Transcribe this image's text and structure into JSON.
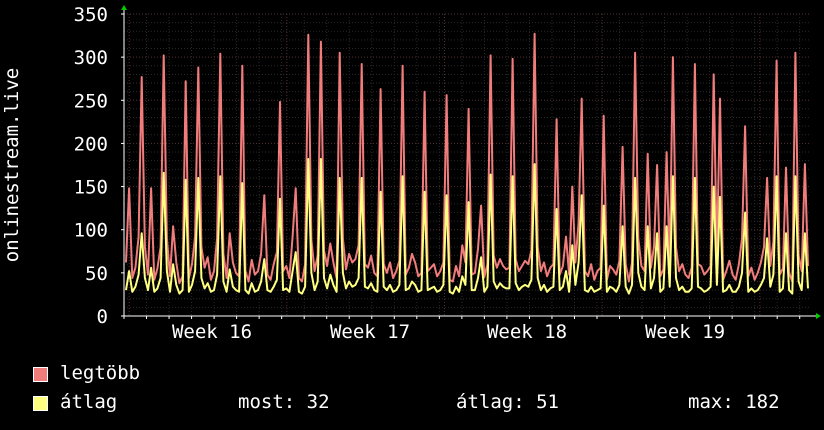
{
  "chart_data": {
    "type": "line",
    "ylabel": "onlinestream.live",
    "ylim": [
      0,
      350
    ],
    "yticks": [
      0,
      50,
      100,
      150,
      200,
      250,
      300,
      350
    ],
    "x_ticks": [
      "Week 16",
      "Week 17",
      "Week 18",
      "Week 19"
    ],
    "grid": true,
    "legend_placement": "bottom-left",
    "series": [
      {
        "name": "legtöbb",
        "color": "#f07c7c",
        "values": [
          62,
          148,
          44,
          56,
          92,
          277,
          80,
          48,
          148,
          42,
          55,
          80,
          302,
          90,
          46,
          104,
          62,
          38,
          46,
          272,
          44,
          60,
          92,
          288,
          80,
          56,
          68,
          42,
          52,
          90,
          304,
          72,
          44,
          96,
          62,
          50,
          46,
          290,
          52,
          40,
          65,
          48,
          52,
          72,
          140,
          48,
          42,
          60,
          74,
          248,
          52,
          58,
          44,
          92,
          148,
          44,
          40,
          60,
          326,
          88,
          52,
          70,
          318,
          76,
          58,
          84,
          62,
          44,
          305,
          90,
          54,
          72,
          62,
          66,
          82,
          292,
          60,
          56,
          70,
          50,
          46,
          263,
          60,
          50,
          62,
          44,
          52,
          64,
          290,
          48,
          56,
          72,
          62,
          46,
          50,
          260,
          52,
          56,
          60,
          46,
          52,
          62,
          256,
          42,
          40,
          58,
          46,
          82,
          62,
          240,
          48,
          50,
          78,
          128,
          45,
          60,
          302,
          70,
          56,
          66,
          58,
          54,
          56,
          298,
          66,
          52,
          58,
          64,
          60,
          76,
          327,
          80,
          52,
          62,
          46,
          56,
          60,
          228,
          48,
          58,
          92,
          48,
          150,
          62,
          108,
          252,
          52,
          46,
          60,
          42,
          52,
          56,
          232,
          42,
          58,
          54,
          48,
          64,
          196,
          60,
          40,
          62,
          305,
          90,
          58,
          52,
          188,
          56,
          80,
          175,
          46,
          54,
          190,
          58,
          300,
          80,
          52,
          60,
          48,
          44,
          56,
          292,
          60,
          58,
          48,
          52,
          58,
          280,
          64,
          252,
          42,
          52,
          64,
          48,
          42,
          60,
          90,
          220,
          46,
          56,
          42,
          50,
          62,
          80,
          160,
          58,
          86,
          296,
          48,
          55,
          172,
          50,
          40,
          305,
          70,
          52,
          176,
          58
        ]
      },
      {
        "name": "átlag",
        "color": "#ffff80",
        "values": [
          30,
          52,
          28,
          34,
          48,
          96,
          44,
          30,
          56,
          28,
          32,
          44,
          166,
          52,
          28,
          60,
          36,
          26,
          30,
          158,
          28,
          36,
          52,
          160,
          44,
          32,
          38,
          28,
          30,
          48,
          162,
          40,
          28,
          54,
          34,
          30,
          28,
          154,
          30,
          26,
          38,
          28,
          30,
          40,
          66,
          30,
          28,
          34,
          42,
          136,
          30,
          32,
          28,
          52,
          74,
          28,
          26,
          34,
          182,
          50,
          30,
          40,
          182,
          44,
          32,
          48,
          36,
          28,
          160,
          50,
          32,
          40,
          34,
          36,
          44,
          160,
          34,
          32,
          38,
          30,
          28,
          144,
          34,
          30,
          36,
          28,
          30,
          36,
          162,
          30,
          32,
          40,
          36,
          28,
          30,
          144,
          30,
          32,
          34,
          28,
          30,
          36,
          140,
          28,
          26,
          34,
          28,
          46,
          36,
          132,
          30,
          30,
          44,
          68,
          28,
          34,
          164,
          40,
          32,
          38,
          34,
          32,
          32,
          162,
          38,
          30,
          34,
          36,
          34,
          42,
          176,
          44,
          30,
          36,
          28,
          32,
          34,
          124,
          30,
          34,
          52,
          28,
          82,
          36,
          62,
          140,
          30,
          28,
          34,
          28,
          30,
          32,
          128,
          28,
          34,
          32,
          28,
          36,
          104,
          34,
          26,
          36,
          160,
          50,
          34,
          30,
          104,
          32,
          44,
          96,
          28,
          32,
          104,
          34,
          162,
          44,
          30,
          34,
          28,
          28,
          32,
          160,
          34,
          32,
          28,
          30,
          34,
          150,
          36,
          138,
          28,
          30,
          36,
          28,
          28,
          34,
          50,
          120,
          28,
          32,
          28,
          30,
          36,
          44,
          90,
          34,
          48,
          162,
          28,
          32,
          96,
          30,
          26,
          162,
          40,
          30,
          96,
          32
        ]
      }
    ]
  },
  "legend": {
    "max_label": "legtöbb",
    "avg_label": "átlag"
  },
  "stats": {
    "now": "most: 32",
    "avg": "átlag: 51",
    "max": "max: 182"
  }
}
